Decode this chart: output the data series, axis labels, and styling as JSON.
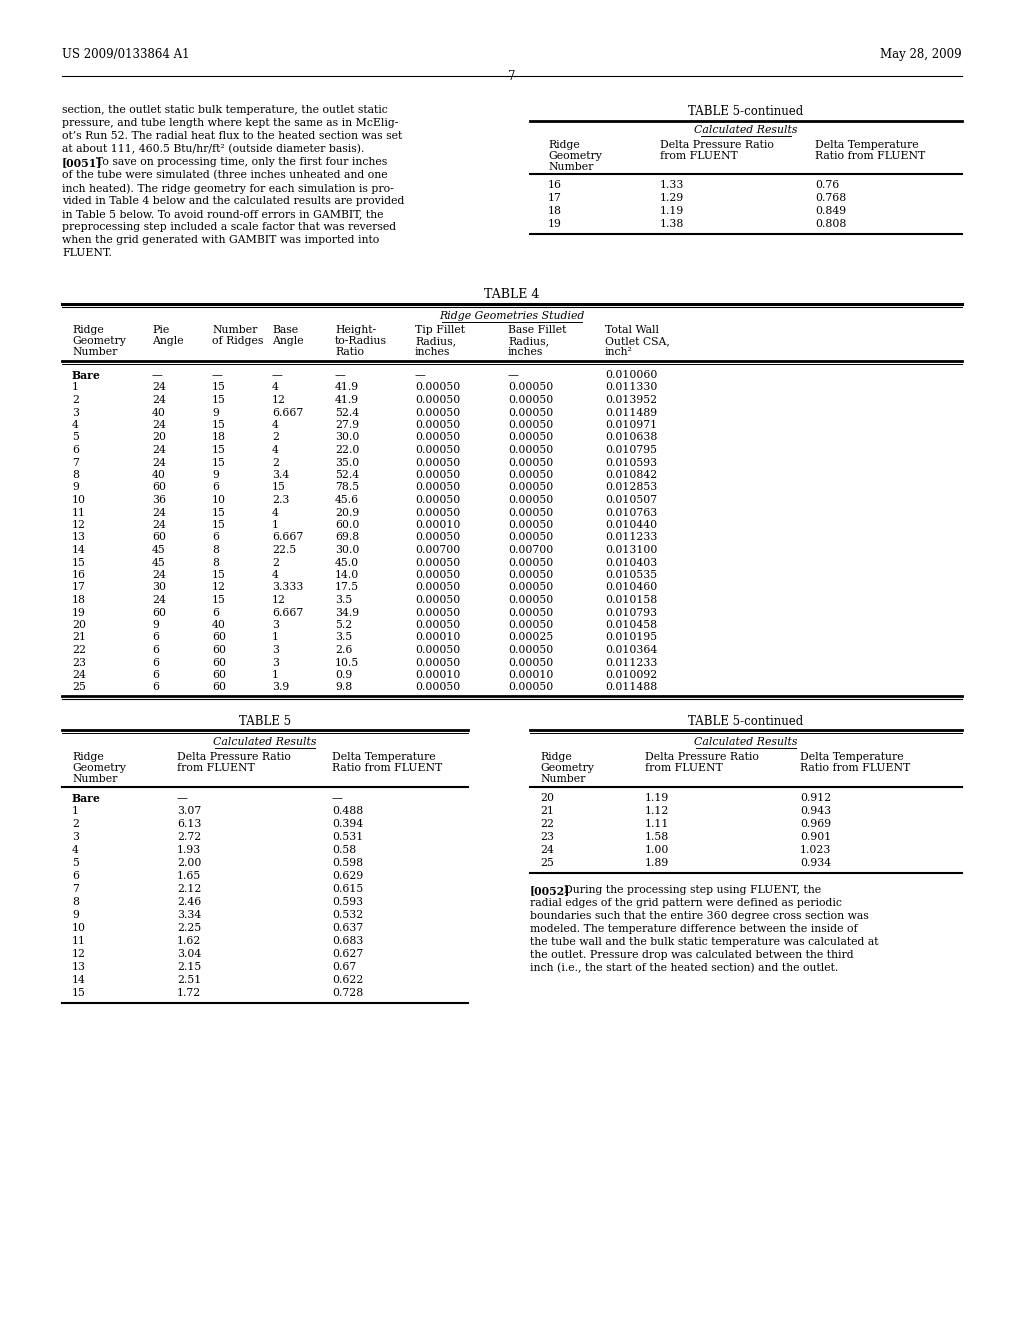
{
  "page_header_left": "US 2009/0133864 A1",
  "page_header_right": "May 28, 2009",
  "page_number": "7",
  "background_color": "#ffffff",
  "text_color": "#000000",
  "font_family": "serif",
  "left_text": [
    "section, the outlet static bulk temperature, the outlet static",
    "pressure, and tube length where kept the same as in McElig-",
    "ot’s Run 52. The radial heat flux to the heated section was set",
    "at about 111, 460.5 Btu/hr/ft² (outside diameter basis).",
    "[0051]   To save on processing time, only the first four inches",
    "of the tube were simulated (three inches unheated and one",
    "inch heated). The ridge geometry for each simulation is pro-",
    "vided in Table 4 below and the calculated results are provided",
    "in Table 5 below. To avoid round-off errors in GAMBIT, the",
    "preprocessing step included a scale factor that was reversed",
    "when the grid generated with GAMBIT was imported into",
    "FLUENT."
  ],
  "table5_continued_top": {
    "title": "TABLE 5-continued",
    "subtitle": "Calculated Results",
    "headers": [
      "Ridge\nGeometry\nNumber",
      "Delta Pressure Ratio\nfrom FLUENT",
      "Delta Temperature\nRatio from FLUENT"
    ],
    "rows": [
      [
        "16",
        "1.33",
        "0.76"
      ],
      [
        "17",
        "1.29",
        "0.768"
      ],
      [
        "18",
        "1.19",
        "0.849"
      ],
      [
        "19",
        "1.38",
        "0.808"
      ]
    ]
  },
  "table4": {
    "title": "TABLE 4",
    "subtitle": "Ridge Geometries Studied",
    "headers": [
      "Ridge\nGeometry\nNumber",
      "Pie\nAngle",
      "Number\nof Ridges",
      "Base\nAngle",
      "Height-\nto-Radius\nRatio",
      "Tip Fillet\nRadius,\ninches",
      "Base Fillet\nRadius,\ninches",
      "Total Wall\nOutlet CSA,\ninch²"
    ],
    "rows": [
      [
        "Bare",
        "—",
        "—",
        "—",
        "—",
        "—",
        "—",
        "0.010060"
      ],
      [
        "1",
        "24",
        "15",
        "4",
        "41.9",
        "0.00050",
        "0.00050",
        "0.011330"
      ],
      [
        "2",
        "24",
        "15",
        "12",
        "41.9",
        "0.00050",
        "0.00050",
        "0.013952"
      ],
      [
        "3",
        "40",
        "9",
        "6.667",
        "52.4",
        "0.00050",
        "0.00050",
        "0.011489"
      ],
      [
        "4",
        "24",
        "15",
        "4",
        "27.9",
        "0.00050",
        "0.00050",
        "0.010971"
      ],
      [
        "5",
        "20",
        "18",
        "2",
        "30.0",
        "0.00050",
        "0.00050",
        "0.010638"
      ],
      [
        "6",
        "24",
        "15",
        "4",
        "22.0",
        "0.00050",
        "0.00050",
        "0.010795"
      ],
      [
        "7",
        "24",
        "15",
        "2",
        "35.0",
        "0.00050",
        "0.00050",
        "0.010593"
      ],
      [
        "8",
        "40",
        "9",
        "3.4",
        "52.4",
        "0.00050",
        "0.00050",
        "0.010842"
      ],
      [
        "9",
        "60",
        "6",
        "15",
        "78.5",
        "0.00050",
        "0.00050",
        "0.012853"
      ],
      [
        "10",
        "36",
        "10",
        "2.3",
        "45.6",
        "0.00050",
        "0.00050",
        "0.010507"
      ],
      [
        "11",
        "24",
        "15",
        "4",
        "20.9",
        "0.00050",
        "0.00050",
        "0.010763"
      ],
      [
        "12",
        "24",
        "15",
        "1",
        "60.0",
        "0.00010",
        "0.00050",
        "0.010440"
      ],
      [
        "13",
        "60",
        "6",
        "6.667",
        "69.8",
        "0.00050",
        "0.00050",
        "0.011233"
      ],
      [
        "14",
        "45",
        "8",
        "22.5",
        "30.0",
        "0.00700",
        "0.00700",
        "0.013100"
      ],
      [
        "15",
        "45",
        "8",
        "2",
        "45.0",
        "0.00050",
        "0.00050",
        "0.010403"
      ],
      [
        "16",
        "24",
        "15",
        "4",
        "14.0",
        "0.00050",
        "0.00050",
        "0.010535"
      ],
      [
        "17",
        "30",
        "12",
        "3.333",
        "17.5",
        "0.00050",
        "0.00050",
        "0.010460"
      ],
      [
        "18",
        "24",
        "15",
        "12",
        "3.5",
        "0.00050",
        "0.00050",
        "0.010158"
      ],
      [
        "19",
        "60",
        "6",
        "6.667",
        "34.9",
        "0.00050",
        "0.00050",
        "0.010793"
      ],
      [
        "20",
        "9",
        "40",
        "3",
        "5.2",
        "0.00050",
        "0.00050",
        "0.010458"
      ],
      [
        "21",
        "6",
        "60",
        "1",
        "3.5",
        "0.00010",
        "0.00025",
        "0.010195"
      ],
      [
        "22",
        "6",
        "60",
        "3",
        "2.6",
        "0.00050",
        "0.00050",
        "0.010364"
      ],
      [
        "23",
        "6",
        "60",
        "3",
        "10.5",
        "0.00050",
        "0.00050",
        "0.011233"
      ],
      [
        "24",
        "6",
        "60",
        "1",
        "0.9",
        "0.00010",
        "0.00010",
        "0.010092"
      ],
      [
        "25",
        "6",
        "60",
        "3.9",
        "9.8",
        "0.00050",
        "0.00050",
        "0.011488"
      ]
    ]
  },
  "table5_left": {
    "title": "TABLE 5",
    "subtitle": "Calculated Results",
    "headers": [
      "Ridge\nGeometry\nNumber",
      "Delta Pressure Ratio\nfrom FLUENT",
      "Delta Temperature\nRatio from FLUENT"
    ],
    "rows": [
      [
        "Bare",
        "—",
        "—"
      ],
      [
        "1",
        "3.07",
        "0.488"
      ],
      [
        "2",
        "6.13",
        "0.394"
      ],
      [
        "3",
        "2.72",
        "0.531"
      ],
      [
        "4",
        "1.93",
        "0.58"
      ],
      [
        "5",
        "2.00",
        "0.598"
      ],
      [
        "6",
        "1.65",
        "0.629"
      ],
      [
        "7",
        "2.12",
        "0.615"
      ],
      [
        "8",
        "2.46",
        "0.593"
      ],
      [
        "9",
        "3.34",
        "0.532"
      ],
      [
        "10",
        "2.25",
        "0.637"
      ],
      [
        "11",
        "1.62",
        "0.683"
      ],
      [
        "12",
        "3.04",
        "0.627"
      ],
      [
        "13",
        "2.15",
        "0.67"
      ],
      [
        "14",
        "2.51",
        "0.622"
      ],
      [
        "15",
        "1.72",
        "0.728"
      ]
    ]
  },
  "table5_right": {
    "title": "TABLE 5-continued",
    "subtitle": "Calculated Results",
    "headers": [
      "Ridge\nGeometry\nNumber",
      "Delta Pressure Ratio\nfrom FLUENT",
      "Delta Temperature\nRatio from FLUENT"
    ],
    "rows": [
      [
        "20",
        "1.19",
        "0.912"
      ],
      [
        "21",
        "1.12",
        "0.943"
      ],
      [
        "22",
        "1.11",
        "0.969"
      ],
      [
        "23",
        "1.58",
        "0.901"
      ],
      [
        "24",
        "1.00",
        "1.023"
      ],
      [
        "25",
        "1.89",
        "0.934"
      ]
    ]
  },
  "bottom_text_lines": [
    "[0052]   During the processing step using FLUENT, the",
    "radial edges of the grid pattern were defined as periodic",
    "boundaries such that the entire 360 degree cross section was",
    "modeled. The temperature difference between the inside of",
    "the tube wall and the bulk static temperature was calculated at",
    "the outlet. Pressure drop was calculated between the third",
    "inch (i.e., the start of the heated section) and the outlet."
  ]
}
